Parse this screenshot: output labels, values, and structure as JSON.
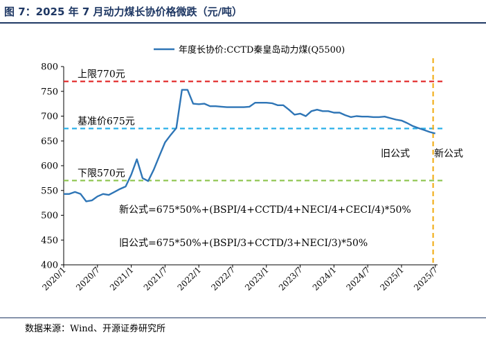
{
  "figure": {
    "title": "图 7：2025 年 7 月动力煤长协价格微跌（元/吨）",
    "source": "数据来源：Wind、开源证券研究所"
  },
  "chart_data": {
    "type": "line",
    "x_tick_labels": [
      "2020/1",
      "2020/7",
      "2021/1",
      "2021/7",
      "2022/1",
      "2022/7",
      "2023/1",
      "2023/7",
      "2024/1",
      "2024/7",
      "2025/1",
      "2025/7"
    ],
    "ylim": [
      400,
      800
    ],
    "yticks": [
      400,
      450,
      500,
      550,
      600,
      650,
      700,
      750,
      800
    ],
    "grid": false,
    "legend_position": "top-center",
    "series": [
      {
        "name": "年度长协价:CCTD秦皇岛动力煤(Q5500)",
        "color": "#2e75b6",
        "x": [
          "2020/1",
          "2020/2",
          "2020/3",
          "2020/4",
          "2020/5",
          "2020/6",
          "2020/7",
          "2020/8",
          "2020/9",
          "2020/10",
          "2020/11",
          "2020/12",
          "2021/1",
          "2021/2",
          "2021/3",
          "2021/4",
          "2021/5",
          "2021/6",
          "2021/7",
          "2021/8",
          "2021/9",
          "2021/10",
          "2021/11",
          "2021/12",
          "2022/1",
          "2022/2",
          "2022/3",
          "2022/4",
          "2022/5",
          "2022/6",
          "2022/7",
          "2022/8",
          "2022/9",
          "2022/10",
          "2022/11",
          "2022/12",
          "2023/1",
          "2023/2",
          "2023/3",
          "2023/4",
          "2023/5",
          "2023/6",
          "2023/7",
          "2023/8",
          "2023/9",
          "2023/10",
          "2023/11",
          "2023/12",
          "2024/1",
          "2024/2",
          "2024/3",
          "2024/4",
          "2024/5",
          "2024/6",
          "2024/7",
          "2024/8",
          "2024/9",
          "2024/10",
          "2024/11",
          "2024/12",
          "2025/1",
          "2025/2",
          "2025/3",
          "2025/4",
          "2025/5",
          "2025/6",
          "2025/7"
        ],
        "values": [
          543,
          543,
          547,
          543,
          528,
          530,
          538,
          543,
          541,
          547,
          553,
          558,
          582,
          613,
          575,
          569,
          592,
          620,
          647,
          662,
          676,
          753,
          753,
          725,
          724,
          725,
          720,
          720,
          719,
          718,
          718,
          718,
          718,
          719,
          727,
          727,
          727,
          726,
          722,
          722,
          713,
          703,
          705,
          700,
          710,
          713,
          710,
          710,
          707,
          707,
          702,
          698,
          700,
          699,
          699,
          698,
          698,
          699,
          696,
          693,
          691,
          686,
          680,
          676,
          672,
          668,
          665
        ]
      }
    ],
    "reference_lines": [
      {
        "label": "上限770元",
        "value": 770,
        "color": "#e02020"
      },
      {
        "label": "基准价675元",
        "value": 675,
        "color": "#2ab0e8"
      },
      {
        "label": "下限570元",
        "value": 570,
        "color": "#8bc34a"
      }
    ],
    "vertical_marker": {
      "x": "2025/6",
      "color": "#f2b01e"
    },
    "annotations": {
      "old_formula_region": "旧公式",
      "new_formula_region": "新公式",
      "new_formula": "新公式=675*50%+(BSPI/4+CCTD/4+NECI/4+CECI/4)*50%",
      "old_formula": "旧公式=675*50%+(BSPI/3+CCTD/3+NECI/3)*50%"
    }
  }
}
